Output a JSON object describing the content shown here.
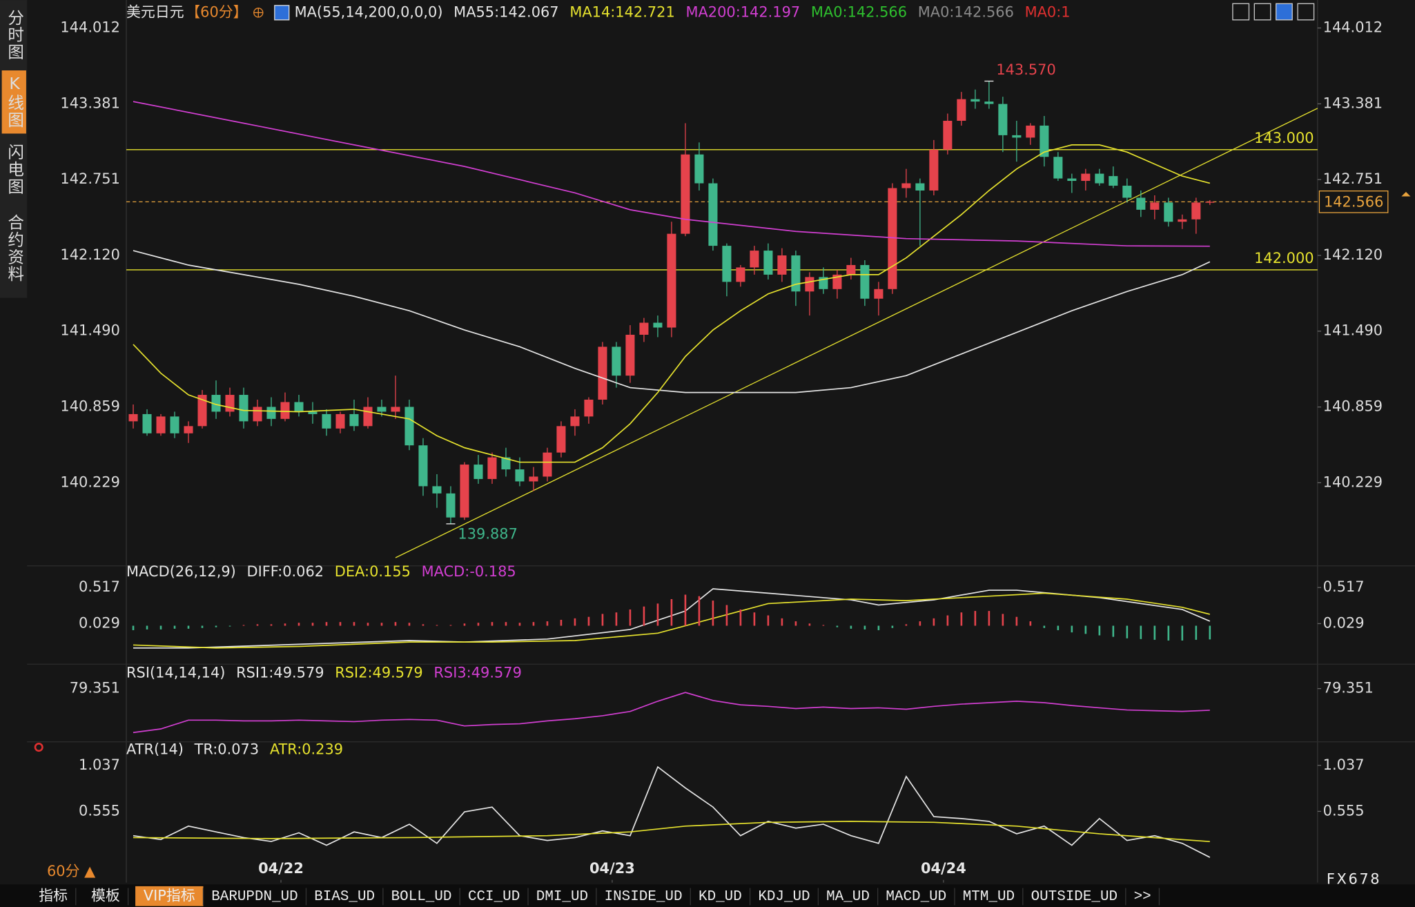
{
  "sidebar": [
    "分时图",
    "K线图",
    "闪电图",
    "合约资料"
  ],
  "chart_data": [
    {
      "type": "candlestick",
      "title": "美元日元",
      "period": "【60分】",
      "indicator": "MA(55,14,200,0,0,0)",
      "up_color": "#e5434c",
      "down_color": "#3fb68b",
      "xlim": [
        -0.5,
        85.8
      ],
      "xticks": [
        {
          "value": 10.7,
          "label": "04/22"
        },
        {
          "value": 34.7,
          "label": "04/23"
        },
        {
          "value": 58.7,
          "label": "04/24"
        }
      ],
      "ylim": [
        139.59,
        144.057
      ],
      "yticks": [
        144.012,
        143.381,
        142.751,
        {
          "value": 142.12,
          "label": "142.120"
        },
        {
          "value": 141.49,
          "label": "141.490"
        },
        140.859,
        140.229
      ],
      "ohlc": [
        [
          140.74,
          140.88,
          140.68,
          140.8
        ],
        [
          140.8,
          140.84,
          140.62,
          140.64
        ],
        [
          140.64,
          140.8,
          140.62,
          140.78
        ],
        [
          140.78,
          140.82,
          140.6,
          140.64
        ],
        [
          140.64,
          140.74,
          140.56,
          140.7
        ],
        [
          140.7,
          141.0,
          140.68,
          140.96
        ],
        [
          140.96,
          141.08,
          140.76,
          140.82
        ],
        [
          140.82,
          141.02,
          140.78,
          140.96
        ],
        [
          140.96,
          141.02,
          140.68,
          140.74
        ],
        [
          140.74,
          140.92,
          140.7,
          140.86
        ],
        [
          140.86,
          140.94,
          140.7,
          140.76
        ],
        [
          140.76,
          140.98,
          140.74,
          140.9
        ],
        [
          140.9,
          140.96,
          140.78,
          140.82
        ],
        [
          140.82,
          140.9,
          140.72,
          140.8
        ],
        [
          140.8,
          140.84,
          140.62,
          140.68
        ],
        [
          140.68,
          140.82,
          140.64,
          140.8
        ],
        [
          140.8,
          140.92,
          140.66,
          140.7
        ],
        [
          140.7,
          140.94,
          140.68,
          140.86
        ],
        [
          140.86,
          140.92,
          140.78,
          140.82
        ],
        [
          140.82,
          141.12,
          140.76,
          140.86
        ],
        [
          140.86,
          140.92,
          140.5,
          140.54
        ],
        [
          140.54,
          140.6,
          140.12,
          140.2
        ],
        [
          140.2,
          140.3,
          140.02,
          140.14
        ],
        [
          140.14,
          140.2,
          139.887,
          139.94
        ],
        [
          139.94,
          140.4,
          139.92,
          140.38
        ],
        [
          140.38,
          140.46,
          140.22,
          140.26
        ],
        [
          140.26,
          140.48,
          140.22,
          140.44
        ],
        [
          140.44,
          140.52,
          140.28,
          140.34
        ],
        [
          140.34,
          140.44,
          140.2,
          140.24
        ],
        [
          140.24,
          140.36,
          140.16,
          140.28
        ],
        [
          140.28,
          140.52,
          140.24,
          140.48
        ],
        [
          140.48,
          140.74,
          140.44,
          140.7
        ],
        [
          140.7,
          140.84,
          140.62,
          140.78
        ],
        [
          140.78,
          140.94,
          140.72,
          140.92
        ],
        [
          140.92,
          141.4,
          140.88,
          141.36
        ],
        [
          141.36,
          141.4,
          141.02,
          141.12
        ],
        [
          141.12,
          141.54,
          141.06,
          141.46
        ],
        [
          141.46,
          141.6,
          141.4,
          141.56
        ],
        [
          141.56,
          141.62,
          141.44,
          141.52
        ],
        [
          141.52,
          142.4,
          141.44,
          142.3
        ],
        [
          142.3,
          143.22,
          142.28,
          142.96
        ],
        [
          142.96,
          143.06,
          142.66,
          142.72
        ],
        [
          142.72,
          142.76,
          142.16,
          142.2
        ],
        [
          142.2,
          142.22,
          141.78,
          141.9
        ],
        [
          141.9,
          142.04,
          141.86,
          142.02
        ],
        [
          142.02,
          142.2,
          141.96,
          142.16
        ],
        [
          142.16,
          142.22,
          141.92,
          141.96
        ],
        [
          141.96,
          142.18,
          141.9,
          142.12
        ],
        [
          142.12,
          142.16,
          141.7,
          141.82
        ],
        [
          141.82,
          141.98,
          141.62,
          141.94
        ],
        [
          141.94,
          142.02,
          141.8,
          141.84
        ],
        [
          141.84,
          142.0,
          141.76,
          141.96
        ],
        [
          141.96,
          142.1,
          141.92,
          142.04
        ],
        [
          142.04,
          142.08,
          141.7,
          141.76
        ],
        [
          141.76,
          141.9,
          141.62,
          141.84
        ],
        [
          141.84,
          142.72,
          141.8,
          142.68
        ],
        [
          142.68,
          142.84,
          142.6,
          142.72
        ],
        [
          142.72,
          142.76,
          142.2,
          142.66
        ],
        [
          142.66,
          143.08,
          142.62,
          143.0
        ],
        [
          143.0,
          143.3,
          142.96,
          143.24
        ],
        [
          143.24,
          143.48,
          143.2,
          143.42
        ],
        [
          143.42,
          143.5,
          143.34,
          143.4
        ],
        [
          143.4,
          143.57,
          143.34,
          143.38
        ],
        [
          143.38,
          143.44,
          142.98,
          143.12
        ],
        [
          143.12,
          143.24,
          142.9,
          143.1
        ],
        [
          143.1,
          143.22,
          143.04,
          143.2
        ],
        [
          143.2,
          143.28,
          142.86,
          142.94
        ],
        [
          142.94,
          142.98,
          142.74,
          142.76
        ],
        [
          142.76,
          142.8,
          142.64,
          142.74
        ],
        [
          142.74,
          142.84,
          142.66,
          142.8
        ],
        [
          142.8,
          142.84,
          142.7,
          142.72
        ],
        [
          142.78,
          142.86,
          142.68,
          142.7
        ],
        [
          142.7,
          142.76,
          142.56,
          142.6
        ],
        [
          142.6,
          142.66,
          142.44,
          142.5
        ],
        [
          142.5,
          142.62,
          142.42,
          142.56
        ],
        [
          142.56,
          142.6,
          142.36,
          142.4
        ],
        [
          142.4,
          142.46,
          142.34,
          142.42
        ],
        [
          142.42,
          142.6,
          142.3,
          142.56
        ],
        [
          142.56,
          142.58,
          142.54,
          142.566
        ]
      ],
      "series": [
        {
          "name": "MA55:142.067",
          "color": "#e6e6e6",
          "x": [
            0,
            4,
            8,
            12,
            16,
            20,
            24,
            28,
            32,
            36,
            40,
            44,
            48,
            52,
            56,
            60,
            64,
            68,
            72,
            76,
            78
          ],
          "values": [
            142.16,
            142.04,
            141.96,
            141.88,
            141.78,
            141.66,
            141.5,
            141.36,
            141.18,
            141.02,
            140.98,
            140.98,
            140.98,
            141.02,
            141.12,
            141.3,
            141.48,
            141.66,
            141.82,
            141.96,
            142.067
          ]
        },
        {
          "name": "MA14:142.721",
          "color": "#e6e22e",
          "x": [
            0,
            2,
            4,
            6,
            8,
            12,
            16,
            20,
            22,
            24,
            28,
            32,
            34,
            36,
            38,
            40,
            42,
            44,
            46,
            48,
            50,
            52,
            54,
            56,
            58,
            60,
            62,
            64,
            66,
            68,
            70,
            72,
            74,
            76,
            78
          ],
          "values": [
            141.38,
            141.14,
            140.96,
            140.88,
            140.83,
            140.82,
            140.84,
            140.76,
            140.62,
            140.52,
            140.4,
            140.4,
            140.52,
            140.72,
            140.98,
            141.28,
            141.5,
            141.66,
            141.8,
            141.88,
            141.92,
            141.96,
            141.96,
            142.1,
            142.28,
            142.46,
            142.66,
            142.84,
            142.98,
            143.04,
            143.04,
            142.98,
            142.88,
            142.78,
            142.721
          ]
        },
        {
          "name": "MA200:142.197",
          "color": "#d23fd2",
          "x": [
            0,
            8,
            16,
            24,
            32,
            36,
            40,
            48,
            56,
            64,
            72,
            78
          ],
          "values": [
            143.4,
            143.22,
            143.04,
            142.86,
            142.64,
            142.5,
            142.42,
            142.32,
            142.26,
            142.24,
            142.2,
            142.197
          ]
        }
      ],
      "legend_after": [
        {
          "text": "MA0:142.566",
          "color": "#2ec02e"
        },
        {
          "text": "MA0:142.566",
          "color": "#8a8a8a"
        },
        {
          "text": "MA0:1",
          "color": "#e03030"
        }
      ],
      "hlines": [
        {
          "value": 143.0,
          "label": "143.000",
          "color": "#e6e22e"
        },
        {
          "value": 142.0,
          "label": "142.000",
          "color": "#e6e22e"
        }
      ],
      "last_price": {
        "value": 142.566,
        "label": "142.566",
        "color": "#e8a33d"
      },
      "trendline": {
        "x": [
          19,
          85.8
        ],
        "values": [
          139.605,
          143.344
        ],
        "color": "#e6e22e"
      },
      "annotations": [
        {
          "x": 62,
          "value": 143.57,
          "label": "143.570",
          "color": "#e5434c"
        },
        {
          "x": 23,
          "value": 139.887,
          "label": "139.887",
          "color": "#3fb68b"
        }
      ]
    },
    {
      "type": "macd",
      "title": "MACD(26,12,9)",
      "ylim": [
        -0.325,
        0.651
      ],
      "yticks": [
        0.517,
        0.029
      ],
      "series": [
        {
          "name": "DIFF:0.062",
          "color": "#e6e6e6",
          "x": [
            0,
            4,
            12,
            20,
            24,
            30,
            36,
            40,
            42,
            46,
            52,
            54,
            58,
            62,
            64,
            70,
            76,
            78
          ],
          "values": [
            -0.3,
            -0.3,
            -0.25,
            -0.2,
            -0.22,
            -0.18,
            -0.05,
            0.2,
            0.5,
            0.44,
            0.35,
            0.28,
            0.35,
            0.48,
            0.48,
            0.38,
            0.22,
            0.062
          ]
        },
        {
          "name": "DEA:0.155",
          "color": "#e6e22e",
          "x": [
            0,
            6,
            12,
            20,
            26,
            32,
            38,
            42,
            46,
            52,
            56,
            62,
            66,
            72,
            76,
            78
          ],
          "values": [
            -0.26,
            -0.3,
            -0.28,
            -0.22,
            -0.22,
            -0.2,
            -0.1,
            0.1,
            0.3,
            0.36,
            0.34,
            0.4,
            0.44,
            0.36,
            0.25,
            0.155
          ]
        },
        {
          "name": "MACD:-0.185",
          "color": "#d23fd2",
          "style": "histogram",
          "up_color": "#e5434c",
          "down_color": "#3fb68b",
          "values": [
            -0.06,
            -0.05,
            -0.05,
            -0.04,
            -0.04,
            -0.03,
            -0.02,
            -0.01,
            0.01,
            0.02,
            0.02,
            0.03,
            0.04,
            0.04,
            0.05,
            0.05,
            0.05,
            0.04,
            0.04,
            0.05,
            0.04,
            0.02,
            0.01,
            0.01,
            0.03,
            0.04,
            0.05,
            0.05,
            0.04,
            0.05,
            0.06,
            0.08,
            0.1,
            0.12,
            0.16,
            0.18,
            0.22,
            0.26,
            0.3,
            0.36,
            0.42,
            0.4,
            0.34,
            0.28,
            0.22,
            0.18,
            0.14,
            0.1,
            0.06,
            0.03,
            0.01,
            -0.02,
            -0.04,
            -0.05,
            -0.06,
            -0.03,
            0.02,
            0.06,
            0.1,
            0.14,
            0.18,
            0.2,
            0.2,
            0.16,
            0.12,
            0.06,
            -0.03,
            -0.06,
            -0.09,
            -0.11,
            -0.13,
            -0.15,
            -0.17,
            -0.18,
            -0.19,
            -0.2,
            -0.2,
            -0.19,
            -0.185
          ]
        }
      ]
    },
    {
      "type": "line",
      "title": "RSI(14,14,14)",
      "ylim": [
        8.7,
        93.0
      ],
      "yticks": [
        79.351
      ],
      "legend_before": [
        {
          "text": "RSI1:49.579",
          "color": "#e6e6e6"
        },
        {
          "text": "RSI2:49.579",
          "color": "#e6e22e"
        }
      ],
      "series": [
        {
          "name": "RSI3:49.579",
          "color": "#d23fd2",
          "x": [
            0,
            2,
            4,
            6,
            8,
            10,
            12,
            14,
            16,
            18,
            20,
            22,
            24,
            26,
            28,
            30,
            32,
            34,
            36,
            38,
            40,
            42,
            44,
            46,
            48,
            50,
            52,
            54,
            56,
            58,
            60,
            62,
            64,
            66,
            68,
            70,
            72,
            74,
            76,
            78
          ],
          "values": [
            19,
            24,
            36,
            36,
            35,
            35,
            36,
            35,
            34,
            36,
            37,
            36,
            28,
            30,
            31,
            35,
            38,
            42,
            48,
            62,
            74,
            63,
            57,
            55,
            52,
            54,
            52,
            53,
            51,
            55,
            58,
            60,
            62,
            60,
            56,
            53,
            50,
            49,
            48,
            49.579
          ]
        }
      ]
    },
    {
      "type": "line",
      "title": "ATR(14)",
      "ylim": [
        -0.163,
        1.132
      ],
      "yticks": [
        1.037,
        0.555
      ],
      "series": [
        {
          "name": "TR:0.073",
          "color": "#e6e6e6",
          "x": [
            0,
            2,
            4,
            6,
            8,
            10,
            12,
            14,
            16,
            18,
            20,
            22,
            24,
            26,
            28,
            30,
            32,
            34,
            36,
            38,
            40,
            42,
            44,
            46,
            48,
            50,
            52,
            54,
            56,
            58,
            60,
            62,
            64,
            66,
            68,
            70,
            72,
            74,
            76,
            78
          ],
          "values": [
            0.3,
            0.26,
            0.4,
            0.34,
            0.28,
            0.24,
            0.33,
            0.2,
            0.34,
            0.28,
            0.42,
            0.22,
            0.55,
            0.6,
            0.3,
            0.25,
            0.28,
            0.35,
            0.3,
            1.02,
            0.8,
            0.6,
            0.3,
            0.45,
            0.38,
            0.42,
            0.3,
            0.22,
            0.92,
            0.5,
            0.48,
            0.45,
            0.32,
            0.4,
            0.2,
            0.48,
            0.25,
            0.3,
            0.22,
            0.073
          ]
        },
        {
          "name": "ATR:0.239",
          "color": "#e6e22e",
          "x": [
            0,
            10,
            20,
            30,
            36,
            40,
            46,
            52,
            58,
            64,
            70,
            78
          ],
          "values": [
            0.28,
            0.27,
            0.28,
            0.3,
            0.34,
            0.4,
            0.44,
            0.45,
            0.44,
            0.4,
            0.32,
            0.239
          ]
        }
      ]
    }
  ],
  "period_switch": "60分 ▲",
  "brand": "FX678",
  "toolbar": [
    "指标",
    "模板",
    "VIP指标",
    "BARUPDN_UD",
    "BIAS_UD",
    "BOLL_UD",
    "CCI_UD",
    "DMI_UD",
    "INSIDE_UD",
    "KD_UD",
    "KDJ_UD",
    "MA_UD",
    "MACD_UD",
    "MTM_UD",
    "OUTSIDE_UD",
    ">>"
  ]
}
